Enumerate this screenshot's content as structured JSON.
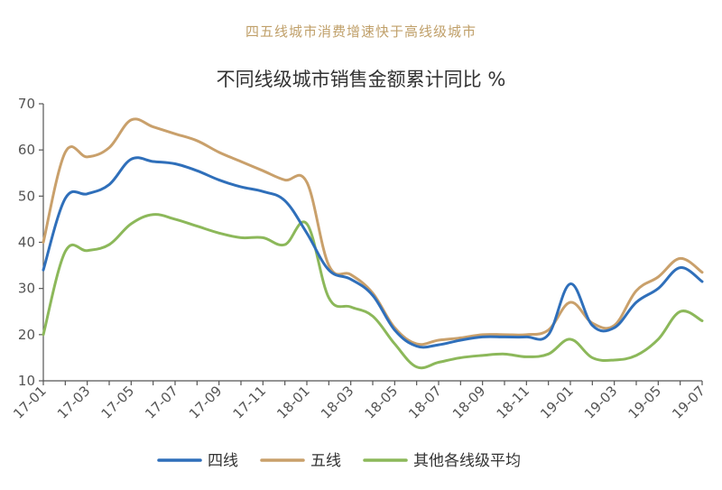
{
  "header": {
    "caption": "四五线城市消费增速快于高线级城市",
    "title": "不同线级城市销售金额累计同比  %"
  },
  "chart_data": {
    "type": "line",
    "title": "不同线级城市销售金额累计同比  %",
    "subtitle": "四五线城市消费增速快于高线级城市",
    "xlabel": "",
    "ylabel": "",
    "ylim": [
      10,
      70
    ],
    "yticks": [
      10,
      20,
      30,
      40,
      50,
      60,
      70
    ],
    "x": [
      "17-01",
      "17-02",
      "17-03",
      "17-04",
      "17-05",
      "17-06",
      "17-07",
      "17-08",
      "17-09",
      "17-10",
      "17-11",
      "17-12",
      "18-01",
      "18-02",
      "18-03",
      "18-04",
      "18-05",
      "18-06",
      "18-07",
      "18-08",
      "18-09",
      "18-10",
      "18-11",
      "18-12",
      "19-01",
      "19-02",
      "19-03",
      "19-04",
      "19-05",
      "19-06",
      "19-07"
    ],
    "xtick_labels": [
      "17-01",
      "17-03",
      "17-05",
      "17-07",
      "17-09",
      "17-11",
      "18-01",
      "18-03",
      "18-05",
      "18-07",
      "18-09",
      "18-11",
      "19-01",
      "19-03",
      "19-05",
      "19-07"
    ],
    "grid": false,
    "legend_position": "bottom",
    "series": [
      {
        "name": "四线",
        "color": "#2f6fba",
        "values": [
          34,
          49.5,
          50.5,
          52.5,
          58,
          57.5,
          57,
          55.5,
          53.5,
          52,
          51,
          49,
          42,
          34,
          32,
          28.5,
          21,
          17.5,
          17.8,
          18.8,
          19.5,
          19.5,
          19.5,
          20,
          31,
          22,
          21.5,
          27,
          30,
          34.5,
          31.5
        ]
      },
      {
        "name": "五线",
        "color": "#c9a06b",
        "values": [
          40,
          59.5,
          58.5,
          60.5,
          66.5,
          65,
          63.5,
          62,
          59.5,
          57.5,
          55.5,
          53.5,
          53,
          35,
          33,
          29,
          21.5,
          18,
          18.8,
          19.3,
          20,
          20,
          20,
          21,
          27,
          22.5,
          22,
          29.5,
          32.5,
          36.5,
          33.5
        ]
      },
      {
        "name": "其他各线级平均",
        "color": "#8cb85a",
        "values": [
          20,
          38,
          38.2,
          39.5,
          44,
          46,
          45,
          43.5,
          42,
          41,
          41,
          39.5,
          44,
          28,
          26,
          24,
          18,
          13,
          14,
          15,
          15.5,
          15.8,
          15.2,
          15.8,
          19,
          15,
          14.5,
          15.5,
          19,
          25,
          23
        ]
      }
    ]
  }
}
